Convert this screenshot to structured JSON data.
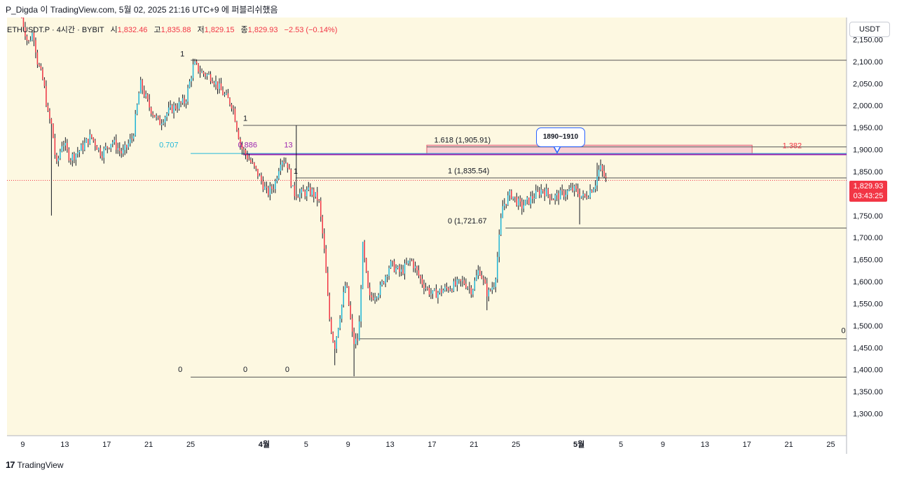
{
  "header": {
    "publisher": "P_Digda 이 TradingView.com, 5월 02, 2025 21:16 UTC+9 에 퍼블리쉬했음"
  },
  "legend": {
    "symbol": "ETHUSDT.P · 4시간 · BYBIT",
    "open_label": "시",
    "open": "1,832.46",
    "high_label": "고",
    "high": "1,835.88",
    "low_label": "저",
    "low": "1,829.15",
    "close_label": "종",
    "close": "1,829.93",
    "change": "−2.53 (−0.14%)"
  },
  "currency_button": "USDT",
  "footer": {
    "logo": "17",
    "brand": "TradingView"
  },
  "price_badge": {
    "price": "1,829.93",
    "countdown": "03:43:25"
  },
  "callout": {
    "text": "1890~1910"
  },
  "colors": {
    "background": "#fdf8e1",
    "up": "#22b8d9",
    "down": "#f23645",
    "wick": "#131722",
    "fib_cyan": "#22b8d9",
    "fib_purple": "#9c27b0",
    "zone_fill": "#f9d0d4",
    "zone_border": "#e06070"
  },
  "chart_data": {
    "type": "candlestick",
    "symbol": "ETHUSDT.P",
    "interval": "4h",
    "ylim": [
      1250,
      2200
    ],
    "y_ticks": [
      {
        "value": 2150,
        "label": "2,150.00"
      },
      {
        "value": 2100,
        "label": "2,100.00"
      },
      {
        "value": 2050,
        "label": "2,050.00"
      },
      {
        "value": 2000,
        "label": "2,000.00"
      },
      {
        "value": 1950,
        "label": "1,950.00"
      },
      {
        "value": 1900,
        "label": "1,900.00"
      },
      {
        "value": 1850,
        "label": "1,850.00"
      },
      {
        "value": 1800,
        "label": "1,800.00"
      },
      {
        "value": 1750,
        "label": "1,750.00"
      },
      {
        "value": 1700,
        "label": "1,700.00"
      },
      {
        "value": 1650,
        "label": "1,650.00"
      },
      {
        "value": 1600,
        "label": "1,600.00"
      },
      {
        "value": 1550,
        "label": "1,550.00"
      },
      {
        "value": 1500,
        "label": "1,500.00"
      },
      {
        "value": 1450,
        "label": "1,450.00"
      },
      {
        "value": 1400,
        "label": "1,400.00"
      },
      {
        "value": 1350,
        "label": "1,350.00"
      },
      {
        "value": 1300,
        "label": "1,300.00"
      }
    ],
    "x_ticks": [
      {
        "day": 0,
        "label": "9"
      },
      {
        "day": 4,
        "label": "13"
      },
      {
        "day": 8,
        "label": "17"
      },
      {
        "day": 12,
        "label": "21"
      },
      {
        "day": 16,
        "label": "25"
      },
      {
        "day": 23,
        "label": "4월",
        "bold": true
      },
      {
        "day": 27,
        "label": "5"
      },
      {
        "day": 31,
        "label": "9"
      },
      {
        "day": 35,
        "label": "13"
      },
      {
        "day": 39,
        "label": "17"
      },
      {
        "day": 43,
        "label": "21"
      },
      {
        "day": 47,
        "label": "25"
      },
      {
        "day": 53,
        "label": "5월",
        "bold": true
      },
      {
        "day": 57,
        "label": "5"
      },
      {
        "day": 61,
        "label": "9"
      },
      {
        "day": 65,
        "label": "13"
      },
      {
        "day": 69,
        "label": "17"
      },
      {
        "day": 73,
        "label": "21"
      },
      {
        "day": 77,
        "label": "25"
      }
    ],
    "x_range_days": [
      -1.5,
      78.5
    ],
    "price_path": [
      [
        -0.1,
        2200
      ],
      [
        0.5,
        2140
      ],
      [
        1.0,
        2170
      ],
      [
        1.4,
        2100
      ],
      [
        2.0,
        2050
      ],
      [
        2.4,
        1980
      ],
      [
        2.8,
        1950
      ],
      [
        3.2,
        1860
      ],
      [
        3.8,
        1920
      ],
      [
        4.5,
        1880
      ],
      [
        5.5,
        1900
      ],
      [
        6.5,
        1930
      ],
      [
        7.5,
        1890
      ],
      [
        8.5,
        1920
      ],
      [
        9.5,
        1890
      ],
      [
        10.5,
        1930
      ],
      [
        11.2,
        2050
      ],
      [
        12.0,
        2000
      ],
      [
        13.0,
        1960
      ],
      [
        14.0,
        1990
      ],
      [
        15.5,
        2010
      ],
      [
        16.3,
        2095
      ],
      [
        17.0,
        2075
      ],
      [
        18.0,
        2065
      ],
      [
        19.0,
        2030
      ],
      [
        20.0,
        2000
      ],
      [
        20.8,
        1905
      ],
      [
        21.5,
        1880
      ],
      [
        22.5,
        1840
      ],
      [
        23.3,
        1800
      ],
      [
        24.0,
        1820
      ],
      [
        24.6,
        1880
      ],
      [
        25.2,
        1870
      ],
      [
        25.8,
        1800
      ],
      [
        26.5,
        1800
      ],
      [
        27.5,
        1805
      ],
      [
        28.2,
        1785
      ],
      [
        28.7,
        1680
      ],
      [
        29.2,
        1520
      ],
      [
        29.7,
        1450
      ],
      [
        30.2,
        1520
      ],
      [
        30.8,
        1600
      ],
      [
        31.5,
        1460
      ],
      [
        32.0,
        1470
      ],
      [
        32.4,
        1680
      ],
      [
        33.0,
        1560
      ],
      [
        34.0,
        1580
      ],
      [
        35.0,
        1640
      ],
      [
        36.0,
        1620
      ],
      [
        37.0,
        1650
      ],
      [
        38.0,
        1600
      ],
      [
        39.0,
        1570
      ],
      [
        40.0,
        1580
      ],
      [
        41.0,
        1590
      ],
      [
        42.0,
        1600
      ],
      [
        42.8,
        1580
      ],
      [
        43.5,
        1630
      ],
      [
        44.3,
        1570
      ],
      [
        45.0,
        1600
      ],
      [
        45.7,
        1770
      ],
      [
        46.5,
        1800
      ],
      [
        47.5,
        1770
      ],
      [
        48.5,
        1790
      ],
      [
        49.5,
        1810
      ],
      [
        50.5,
        1790
      ],
      [
        51.5,
        1800
      ],
      [
        52.5,
        1810
      ],
      [
        53.5,
        1790
      ],
      [
        54.5,
        1820
      ],
      [
        55.0,
        1860
      ],
      [
        55.6,
        1830
      ]
    ],
    "wick_extremes": [
      {
        "day": 2.8,
        "low": 1750
      },
      {
        "day": 29.7,
        "low": 1410
      },
      {
        "day": 31.5,
        "low": 1385
      },
      {
        "day": 26.0,
        "high": 1955
      },
      {
        "day": 32.4,
        "high": 1690
      },
      {
        "day": 54.8,
        "high": 1870
      },
      {
        "day": 53.0,
        "low": 1730
      },
      {
        "day": 44.3,
        "low": 1535
      }
    ],
    "current_price": 1829.93,
    "horizontal_lines": [
      {
        "price": 2103,
        "from_day": 16.0,
        "to_day": 78.5,
        "color": "#555555"
      },
      {
        "price": 1955,
        "from_day": 21.0,
        "to_day": 78.5,
        "color": "#555555"
      },
      {
        "price": 1905.91,
        "from_day": 38.5,
        "to_day": 78.5,
        "color": "#555555"
      },
      {
        "price": 1835.54,
        "from_day": 26.0,
        "to_day": 78.5,
        "color": "#555555"
      },
      {
        "price": 1721.67,
        "from_day": 46.0,
        "to_day": 78.5,
        "color": "#555555"
      },
      {
        "price": 1470,
        "from_day": 32.0,
        "to_day": 78.5,
        "color": "#555555"
      },
      {
        "price": 1383,
        "from_day": 16.0,
        "to_day": 78.5,
        "color": "#555555"
      },
      {
        "price": 1891,
        "from_day": 16.0,
        "to_day": 78.5,
        "color": "#22b8d9"
      },
      {
        "price": 1889,
        "from_day": 21.0,
        "to_day": 78.5,
        "color": "#9c27b0"
      }
    ],
    "zone": {
      "low": 1890,
      "high": 1910,
      "from_day": 38.5,
      "to_day": 69.5
    },
    "fib_labels": [
      {
        "text": "1",
        "price": 2112,
        "day": 15.0,
        "color": "#131722"
      },
      {
        "text": "1",
        "price": 1965,
        "day": 21.0,
        "color": "#131722"
      },
      {
        "text": "1",
        "price": 1845,
        "day": 25.8,
        "color": "#131722"
      },
      {
        "text": "0.707",
        "price": 1905,
        "day": 13.0,
        "color": "#22b8d9"
      },
      {
        "text": "0.886",
        "price": 1905,
        "day": 20.5,
        "color": "#9c27b0"
      },
      {
        "text": "13",
        "price": 1905,
        "day": 24.9,
        "color": "#9c27b0"
      },
      {
        "text": "1.618 (1,905.91)",
        "price": 1916,
        "day": 39.2,
        "color": "#131722"
      },
      {
        "text": "1 (1,835.54)",
        "price": 1846,
        "day": 40.5,
        "color": "#131722"
      },
      {
        "text": "0 (1,721.67",
        "price": 1732,
        "day": 40.5,
        "color": "#131722"
      },
      {
        "text": "1.382",
        "price": 1903,
        "day": 72.4,
        "color": "#f23645"
      },
      {
        "text": "0",
        "price": 1395,
        "day": 14.8,
        "color": "#131722"
      },
      {
        "text": "0",
        "price": 1395,
        "day": 21.0,
        "color": "#131722"
      },
      {
        "text": "0",
        "price": 1395,
        "day": 25.0,
        "color": "#131722"
      },
      {
        "text": "0",
        "price": 1483,
        "day": 78.0,
        "color": "#131722"
      }
    ]
  }
}
